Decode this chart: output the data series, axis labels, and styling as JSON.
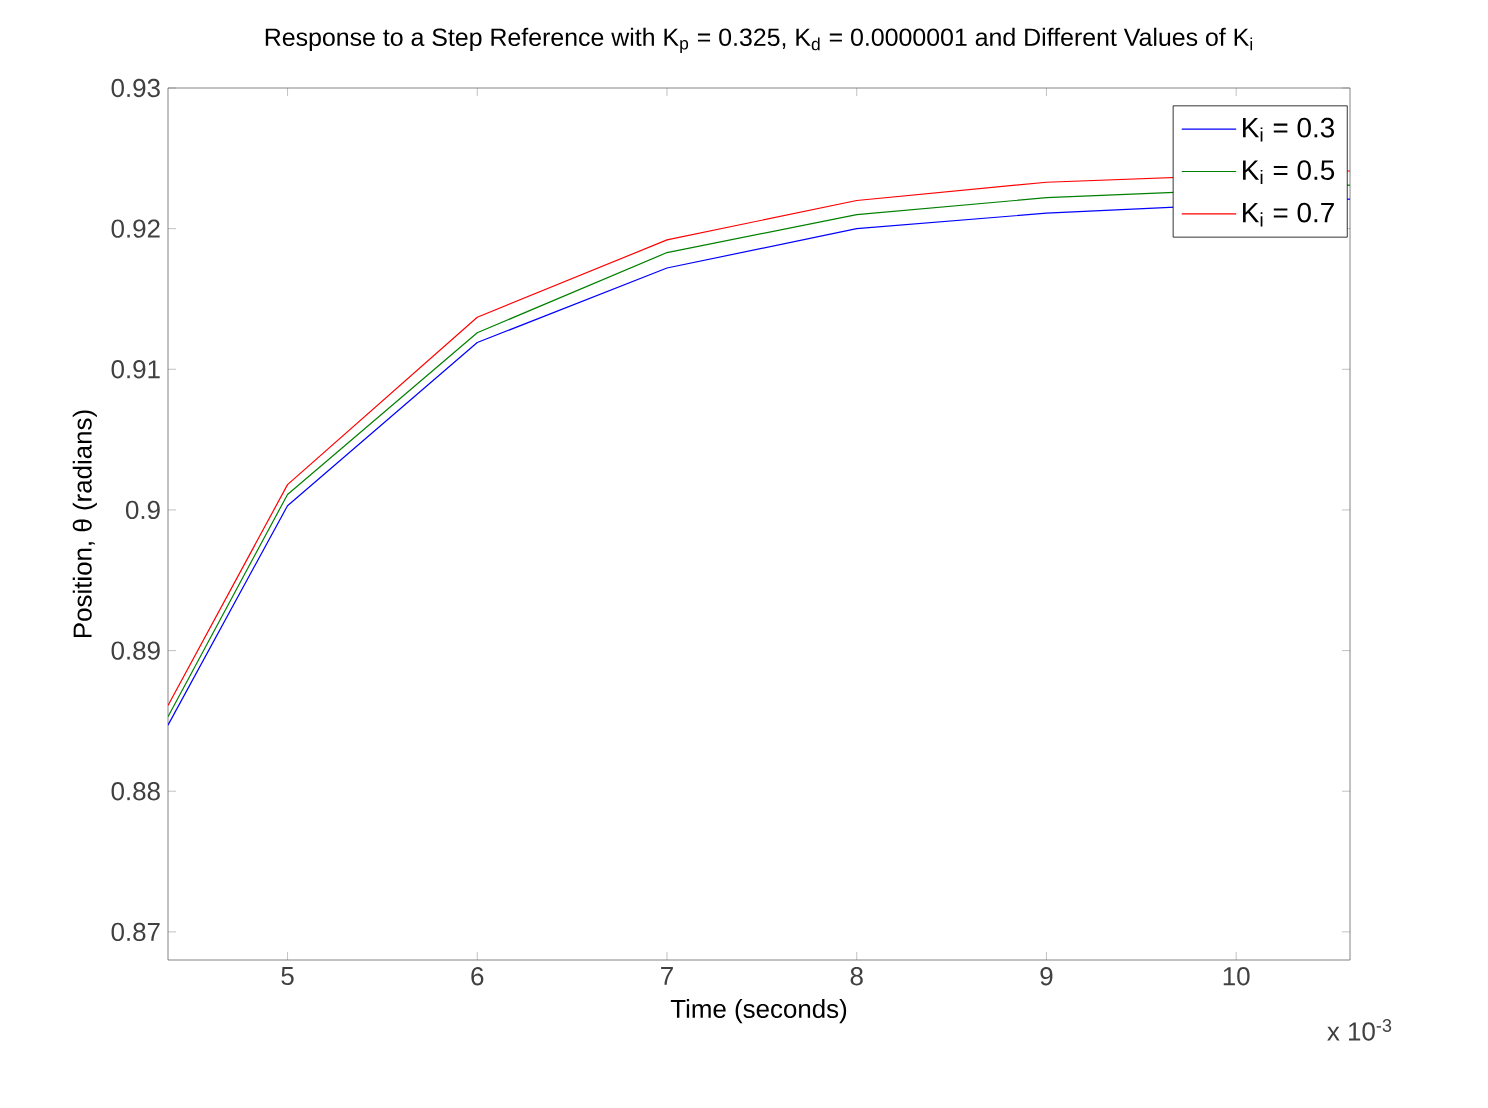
{
  "chart_data": {
    "type": "line",
    "title": "Response to a Step Reference with K$_{p}$ = 0.325, K$_{d}$ = 0.0000001 and Different Values of K$_{i}$",
    "xlabel": "Time (seconds)",
    "ylabel": "Position, θ (radians)",
    "annotations": [
      "x 10$^{-3}$"
    ],
    "x": [
      4.37,
      5,
      6,
      7,
      8,
      9,
      10.6
    ],
    "series": [
      {
        "name": "K$_{i}$ = 0.3",
        "color": "#0000ff",
        "values": [
          0.8847,
          0.9003,
          0.9119,
          0.9172,
          0.92,
          0.9211,
          0.9221
        ]
      },
      {
        "name": "K$_{i}$ = 0.5",
        "color": "#008000",
        "values": [
          0.8853,
          0.9011,
          0.9126,
          0.9183,
          0.921,
          0.9222,
          0.9231
        ]
      },
      {
        "name": "K$_{i}$ = 0.7",
        "color": "#ff0000",
        "values": [
          0.8861,
          0.9018,
          0.9137,
          0.9192,
          0.922,
          0.9233,
          0.9241
        ]
      }
    ],
    "xlim": [
      4.37,
      10.6
    ],
    "ylim": [
      0.868,
      0.93
    ],
    "xticks": [
      5,
      6,
      7,
      8,
      9,
      10
    ],
    "yticks": [
      0.87,
      0.88,
      0.89,
      0.9,
      0.91,
      0.92,
      0.93
    ],
    "grid": false,
    "legend": "top right",
    "line_style": "solid",
    "marker": "none"
  }
}
